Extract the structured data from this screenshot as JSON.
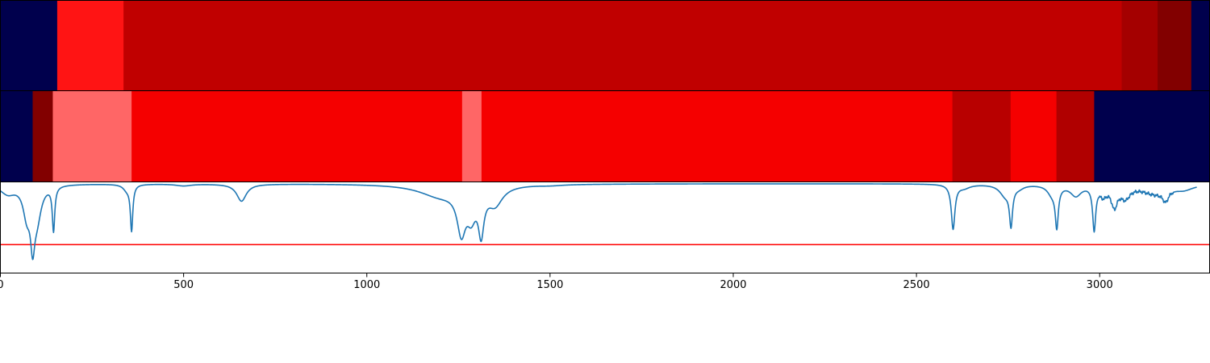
{
  "chart_data": [
    {
      "type": "heatmap",
      "panel": "top-band",
      "xlim": [
        0,
        3300
      ],
      "segments": [
        {
          "start": 0,
          "end": 155,
          "color": "#00004d"
        },
        {
          "start": 155,
          "end": 336,
          "color": "#ff1414"
        },
        {
          "start": 336,
          "end": 3060,
          "color": "#c00000"
        },
        {
          "start": 3060,
          "end": 3158,
          "color": "#a40000"
        },
        {
          "start": 3158,
          "end": 3250,
          "color": "#820000"
        },
        {
          "start": 3250,
          "end": 3300,
          "color": "#00004d"
        }
      ]
    },
    {
      "type": "heatmap",
      "panel": "middle-band",
      "xlim": [
        0,
        3300
      ],
      "segments": [
        {
          "start": 0,
          "end": 88,
          "color": "#00004d"
        },
        {
          "start": 88,
          "end": 143,
          "color": "#820000"
        },
        {
          "start": 143,
          "end": 358,
          "color": "#ff6666"
        },
        {
          "start": 358,
          "end": 1260,
          "color": "#f50000"
        },
        {
          "start": 1260,
          "end": 1313,
          "color": "#ff6666"
        },
        {
          "start": 1313,
          "end": 2598,
          "color": "#f50000"
        },
        {
          "start": 2598,
          "end": 2757,
          "color": "#b80000"
        },
        {
          "start": 2757,
          "end": 2882,
          "color": "#f50000"
        },
        {
          "start": 2882,
          "end": 2985,
          "color": "#b00000"
        },
        {
          "start": 2985,
          "end": 3300,
          "color": "#00004d"
        }
      ]
    },
    {
      "type": "line",
      "panel": "spectrum",
      "xlim": [
        0,
        3300
      ],
      "ylim": [
        0,
        1
      ],
      "xticks": [
        0,
        500,
        1000,
        1500,
        2000,
        2500,
        3000
      ],
      "xtick_labels": [
        "0",
        "500",
        "1000",
        "1500",
        "2000",
        "2500",
        "3000"
      ],
      "series_color": "#1f77b4",
      "baseline": 0.985,
      "threshold": {
        "value": 0.31,
        "color": "#ff0000"
      },
      "features": [
        {
          "type": "trough",
          "center": 20,
          "depth": 0.1,
          "width": 25
        },
        {
          "type": "trough",
          "center": 72,
          "depth": 0.3,
          "width": 12
        },
        {
          "type": "trough",
          "center": 88,
          "depth": 0.52,
          "width": 7
        },
        {
          "type": "trough",
          "center": 100,
          "depth": 0.34,
          "width": 14
        },
        {
          "type": "trough",
          "center": 145,
          "depth": 0.49,
          "width": 4
        },
        {
          "type": "trough",
          "center": 358,
          "depth": 0.5,
          "width": 4
        },
        {
          "type": "trough",
          "center": 345,
          "depth": 0.06,
          "width": 12
        },
        {
          "type": "trough",
          "center": 500,
          "depth": 0.02,
          "width": 25
        },
        {
          "type": "trough",
          "center": 658,
          "depth": 0.19,
          "width": 16
        },
        {
          "type": "trough",
          "center": 1200,
          "depth": 0.13,
          "width": 70
        },
        {
          "type": "trough",
          "center": 1258,
          "depth": 0.45,
          "width": 14
        },
        {
          "type": "trough",
          "center": 1285,
          "depth": 0.27,
          "width": 15
        },
        {
          "type": "trough",
          "center": 1312,
          "depth": 0.45,
          "width": 9
        },
        {
          "type": "trough",
          "center": 1350,
          "depth": 0.2,
          "width": 25
        },
        {
          "type": "trough",
          "center": 1500,
          "depth": 0.01,
          "width": 40
        },
        {
          "type": "trough",
          "center": 2600,
          "depth": 0.49,
          "width": 6
        },
        {
          "type": "trough",
          "center": 2630,
          "depth": 0.04,
          "width": 20
        },
        {
          "type": "trough",
          "center": 2742,
          "depth": 0.12,
          "width": 18
        },
        {
          "type": "trough",
          "center": 2758,
          "depth": 0.41,
          "width": 5
        },
        {
          "type": "trough",
          "center": 2780,
          "depth": 0.03,
          "width": 15
        },
        {
          "type": "trough",
          "center": 2870,
          "depth": 0.1,
          "width": 15
        },
        {
          "type": "trough",
          "center": 2883,
          "depth": 0.43,
          "width": 5
        },
        {
          "type": "trough",
          "center": 2935,
          "depth": 0.12,
          "width": 18
        },
        {
          "type": "trough",
          "center": 2985,
          "depth": 0.48,
          "width": 5
        },
        {
          "type": "trough",
          "center": 3010,
          "depth": 0.1,
          "width": 12
        },
        {
          "type": "trough",
          "center": 3040,
          "depth": 0.22,
          "width": 10
        },
        {
          "type": "trough",
          "center": 3070,
          "depth": 0.13,
          "width": 16
        },
        {
          "type": "trough",
          "center": 3150,
          "depth": 0.1,
          "width": 45
        },
        {
          "type": "trough",
          "center": 3180,
          "depth": 0.12,
          "width": 10
        },
        {
          "type": "trough",
          "center": 3230,
          "depth": 0.05,
          "width": 30
        },
        {
          "type": "noise",
          "start": 3000,
          "end": 3200,
          "amplitude": 0.02
        }
      ]
    }
  ]
}
